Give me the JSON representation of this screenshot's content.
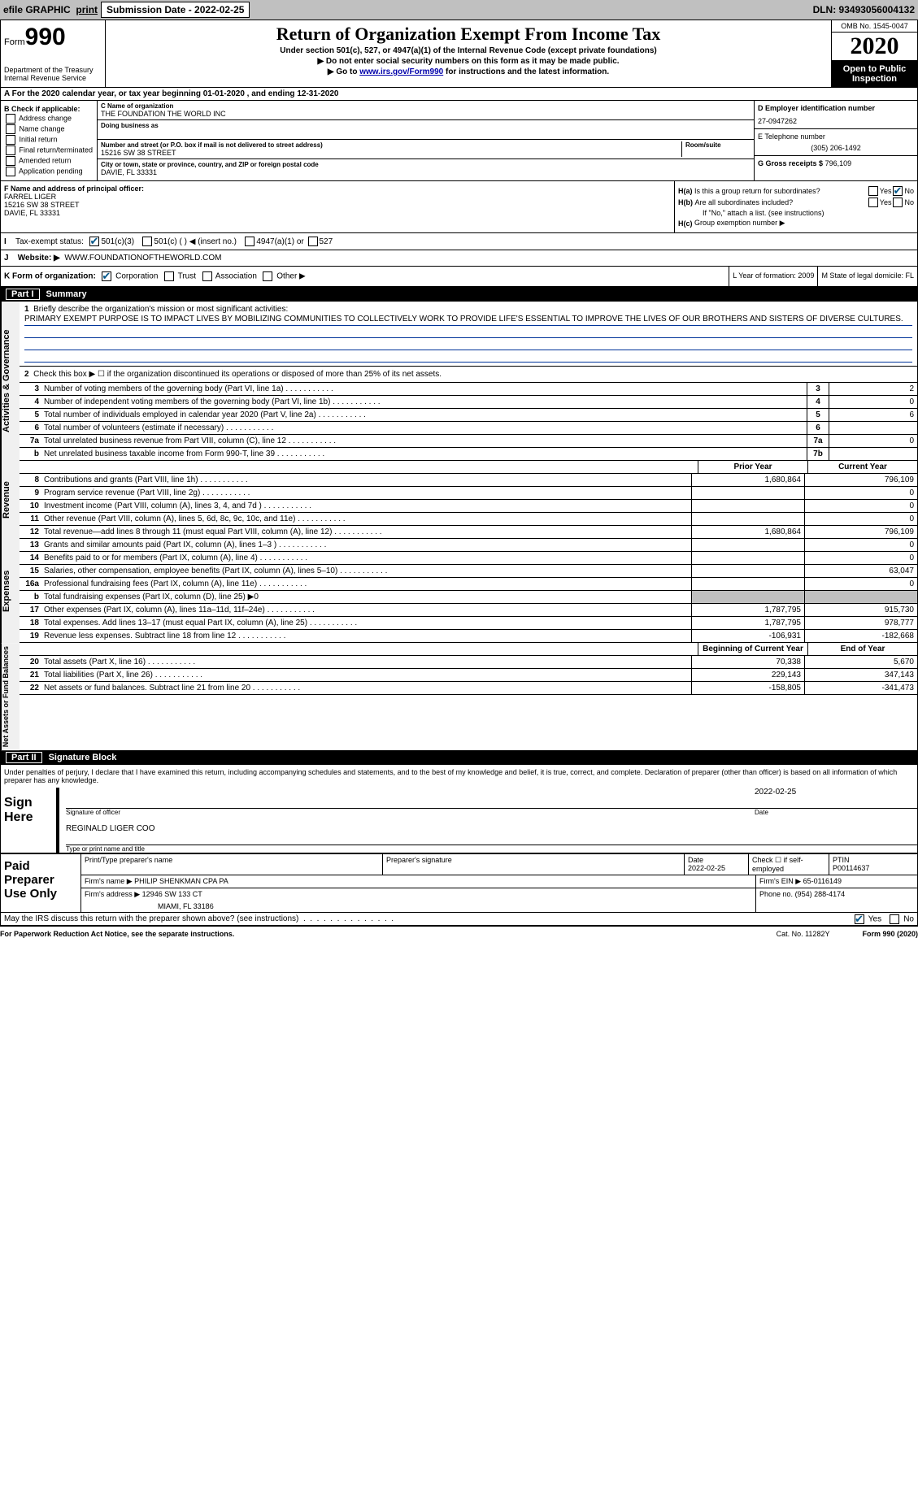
{
  "top_bar": {
    "efile": "efile GRAPHIC",
    "print": "print",
    "submission_label": "Submission Date - 2022-02-25",
    "dln": "DLN: 93493056004132"
  },
  "header": {
    "form_word": "Form",
    "form_number": "990",
    "dept": "Department of the Treasury",
    "irs": "Internal Revenue Service",
    "title": "Return of Organization Exempt From Income Tax",
    "subtitle1": "Under section 501(c), 527, or 4947(a)(1) of the Internal Revenue Code (except private foundations)",
    "subtitle2": "▶ Do not enter social security numbers on this form as it may be made public.",
    "subtitle3_pre": "▶ Go to ",
    "subtitle3_link": "www.irs.gov/Form990",
    "subtitle3_post": " for instructions and the latest information.",
    "omb": "OMB No. 1545-0047",
    "year": "2020",
    "inspection": "Open to Public Inspection"
  },
  "rowA": "A For the 2020 calendar year, or tax year beginning 01-01-2020    , and ending 12-31-2020",
  "colB": {
    "label": "B Check if applicable:",
    "opts": [
      "Address change",
      "Name change",
      "Initial return",
      "Final return/terminated",
      "Amended return",
      "Application pending"
    ]
  },
  "colC": {
    "name_label": "C Name of organization",
    "name": "THE FOUNDATION THE WORLD INC",
    "dba_label": "Doing business as",
    "addr_label": "Number and street (or P.O. box if mail is not delivered to street address)",
    "room_label": "Room/suite",
    "addr": "15216 SW 38 STREET",
    "city_label": "City or town, state or province, country, and ZIP or foreign postal code",
    "city": "DAVIE, FL  33331"
  },
  "colD": {
    "ein_label": "D Employer identification number",
    "ein": "27-0947262",
    "phone_label": "E Telephone number",
    "phone": "(305) 206-1492",
    "gross_label": "G Gross receipts $",
    "gross": "796,109"
  },
  "colF": {
    "label": "F Name and address of principal officer:",
    "name": "FARREL LIGER",
    "addr1": "15216 SW 38 STREET",
    "addr2": "DAVIE, FL  33331"
  },
  "colH": {
    "ha_label": "H(a)",
    "ha_q": "Is this a group return for subordinates?",
    "hb_label": "H(b)",
    "hb_q": "Are all subordinates included?",
    "hb_note": "If \"No,\" attach a list. (see instructions)",
    "hc_label": "H(c)",
    "hc_q": "Group exemption number ▶",
    "yes": "Yes",
    "no": "No"
  },
  "rowI": {
    "label": "I",
    "text": "Tax-exempt status:",
    "opt1": "501(c)(3)",
    "opt2": "501(c) (  ) ◀ (insert no.)",
    "opt3": "4947(a)(1) or",
    "opt4": "527"
  },
  "rowJ": {
    "label": "J",
    "text": "Website: ▶",
    "value": "WWW.FOUNDATIONOFTHEWORLD.COM"
  },
  "rowK": {
    "label": "K Form of organization:",
    "opt1": "Corporation",
    "opt2": "Trust",
    "opt3": "Association",
    "opt4": "Other ▶",
    "L": "L Year of formation: 2009",
    "M": "M State of legal domicile: FL"
  },
  "part1": {
    "label": "Part I",
    "title": "Summary"
  },
  "sections": {
    "governance": "Activities & Governance",
    "revenue": "Revenue",
    "expenses": "Expenses",
    "netassets": "Net Assets or Fund Balances"
  },
  "line1": {
    "n": "1",
    "desc": "Briefly describe the organization's mission or most significant activities:",
    "mission": "PRIMARY EXEMPT PURPOSE IS TO IMPACT LIVES BY MOBILIZING COMMUNITIES TO COLLECTIVELY WORK TO PROVIDE LIFE'S ESSENTIAL TO IMPROVE THE LIVES OF OUR BROTHERS AND SISTERS OF DIVERSE CULTURES."
  },
  "line2": {
    "n": "2",
    "desc": "Check this box ▶ ☐ if the organization discontinued its operations or disposed of more than 25% of its net assets."
  },
  "governance_rows": [
    {
      "n": "3",
      "desc": "Number of voting members of the governing body (Part VI, line 1a)",
      "box": "3",
      "val": "2"
    },
    {
      "n": "4",
      "desc": "Number of independent voting members of the governing body (Part VI, line 1b)",
      "box": "4",
      "val": "0"
    },
    {
      "n": "5",
      "desc": "Total number of individuals employed in calendar year 2020 (Part V, line 2a)",
      "box": "5",
      "val": "6"
    },
    {
      "n": "6",
      "desc": "Total number of volunteers (estimate if necessary)",
      "box": "6",
      "val": ""
    },
    {
      "n": "7a",
      "desc": "Total unrelated business revenue from Part VIII, column (C), line 12",
      "box": "7a",
      "val": "0"
    },
    {
      "n": "b",
      "desc": "Net unrelated business taxable income from Form 990-T, line 39",
      "box": "7b",
      "val": ""
    }
  ],
  "two_col_hdr": {
    "prior": "Prior Year",
    "current": "Current Year"
  },
  "revenue_rows": [
    {
      "n": "8",
      "desc": "Contributions and grants (Part VIII, line 1h)",
      "prior": "1,680,864",
      "current": "796,109"
    },
    {
      "n": "9",
      "desc": "Program service revenue (Part VIII, line 2g)",
      "prior": "",
      "current": "0"
    },
    {
      "n": "10",
      "desc": "Investment income (Part VIII, column (A), lines 3, 4, and 7d )",
      "prior": "",
      "current": "0"
    },
    {
      "n": "11",
      "desc": "Other revenue (Part VIII, column (A), lines 5, 6d, 8c, 9c, 10c, and 11e)",
      "prior": "",
      "current": "0"
    },
    {
      "n": "12",
      "desc": "Total revenue—add lines 8 through 11 (must equal Part VIII, column (A), line 12)",
      "prior": "1,680,864",
      "current": "796,109"
    }
  ],
  "expense_rows": [
    {
      "n": "13",
      "desc": "Grants and similar amounts paid (Part IX, column (A), lines 1–3 )",
      "prior": "",
      "current": "0"
    },
    {
      "n": "14",
      "desc": "Benefits paid to or for members (Part IX, column (A), line 4)",
      "prior": "",
      "current": "0"
    },
    {
      "n": "15",
      "desc": "Salaries, other compensation, employee benefits (Part IX, column (A), lines 5–10)",
      "prior": "",
      "current": "63,047"
    },
    {
      "n": "16a",
      "desc": "Professional fundraising fees (Part IX, column (A), line 11e)",
      "prior": "",
      "current": "0"
    },
    {
      "n": "b",
      "desc": "Total fundraising expenses (Part IX, column (D), line 25) ▶0",
      "prior": null,
      "current": null,
      "shaded": true
    },
    {
      "n": "17",
      "desc": "Other expenses (Part IX, column (A), lines 11a–11d, 11f–24e)",
      "prior": "1,787,795",
      "current": "915,730"
    },
    {
      "n": "18",
      "desc": "Total expenses. Add lines 13–17 (must equal Part IX, column (A), line 25)",
      "prior": "1,787,795",
      "current": "978,777"
    },
    {
      "n": "19",
      "desc": "Revenue less expenses. Subtract line 18 from line 12",
      "prior": "-106,931",
      "current": "-182,668"
    }
  ],
  "net_hdr": {
    "beg": "Beginning of Current Year",
    "end": "End of Year"
  },
  "net_rows": [
    {
      "n": "20",
      "desc": "Total assets (Part X, line 16)",
      "beg": "70,338",
      "end": "5,670"
    },
    {
      "n": "21",
      "desc": "Total liabilities (Part X, line 26)",
      "beg": "229,143",
      "end": "347,143"
    },
    {
      "n": "22",
      "desc": "Net assets or fund balances. Subtract line 21 from line 20",
      "beg": "-158,805",
      "end": "-341,473"
    }
  ],
  "part2": {
    "label": "Part II",
    "title": "Signature Block"
  },
  "sig_declaration": "Under penalties of perjury, I declare that I have examined this return, including accompanying schedules and statements, and to the best of my knowledge and belief, it is true, correct, and complete. Declaration of preparer (other than officer) is based on all information of which preparer has any knowledge.",
  "sign": {
    "label": "Sign Here",
    "sig_officer": "Signature of officer",
    "date_label": "Date",
    "date": "2022-02-25",
    "name": "REGINALD LIGER COO",
    "name_label": "Type or print name and title"
  },
  "preparer": {
    "label": "Paid Preparer Use Only",
    "h_name": "Print/Type preparer's name",
    "h_sig": "Preparer's signature",
    "h_date": "Date",
    "date": "2022-02-25",
    "h_check": "Check ☐ if self-employed",
    "h_ptin": "PTIN",
    "ptin": "P00114637",
    "firm_name_label": "Firm's name    ▶",
    "firm_name": "PHILIP SHENKMAN CPA PA",
    "firm_ein_label": "Firm's EIN ▶",
    "firm_ein": "65-0116149",
    "firm_addr_label": "Firm's address ▶",
    "firm_addr1": "12946 SW 133 CT",
    "firm_addr2": "MIAMI, FL  33186",
    "phone_label": "Phone no.",
    "phone": "(954) 288-4174"
  },
  "discuss": {
    "text": "May the IRS discuss this return with the preparer shown above? (see instructions)",
    "yes": "Yes",
    "no": "No"
  },
  "footer": {
    "left": "For Paperwork Reduction Act Notice, see the separate instructions.",
    "center": "Cat. No. 11282Y",
    "right": "Form 990 (2020)"
  }
}
